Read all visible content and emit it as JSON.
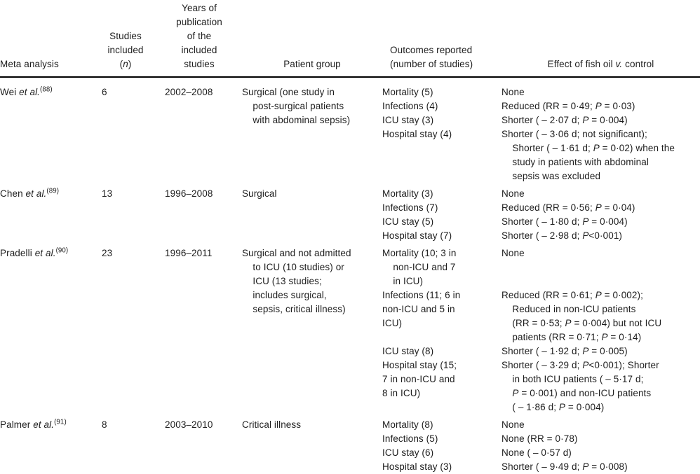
{
  "page": {
    "background_color": "#ffffff",
    "text_color": "#1d1d1d",
    "header_rule_color": "#000000"
  },
  "table": {
    "columns": [
      {
        "key": "meta_analysis",
        "label": "Meta analysis"
      },
      {
        "key": "studies_included",
        "label": "Studies\nincluded\n(*n*)"
      },
      {
        "key": "years",
        "label": "Years of\npublication\nof the\nincluded\nstudies"
      },
      {
        "key": "patient_group",
        "label": "Patient group"
      },
      {
        "key": "outcomes",
        "label": "Outcomes reported\n(number of studies)"
      },
      {
        "key": "effect",
        "label": "Effect of fish oil *v.* control"
      }
    ],
    "rows": [
      {
        "meta_analysis": "Wei *et al.*^(88)^",
        "studies_included": "6",
        "years": "2002–2008",
        "patient_group": "Surgical (one study in\n    post-surgical patients\n    with abdominal sepsis)",
        "outcomes": "Mortality (5)\nInfections (4)\nICU stay (3)\nHospital stay (4)",
        "effect": "None\nReduced (RR = 0·49; *P* = 0·03)\nShorter ( – 2·07 d; *P* = 0·004)\nShorter ( – 3·06 d; not significant);\n    Shorter ( – 1·61 d; *P* = 0·02) when the\n    study in patients with abdominal\n    sepsis was excluded"
      },
      {
        "meta_analysis": "Chen *et al.*^(89)^",
        "studies_included": "13",
        "years": "1996–2008",
        "patient_group": "Surgical",
        "outcomes": "Mortality (3)\nInfections (7)\nICU stay (5)\nHospital stay (7)",
        "effect": "None\nReduced (RR = 0·56; *P* = 0·04)\nShorter ( – 1·80 d; *P* = 0·004)\nShorter ( – 2·98 d; *P*<0·001)"
      },
      {
        "meta_analysis": "Pradelli *et al.*^(90)^",
        "studies_included": "23",
        "years": "1996–2011",
        "patient_group": "Surgical and not admitted\n    to ICU (10 studies) or\n    ICU (13 studies;\n    includes surgical,\n    sepsis, critical illness)",
        "outcomes": "Mortality (10; 3 in\n    non-ICU and 7\n    in ICU)\nInfections (11; 6 in\nnon-ICU and 5 in\nICU)\n\nICU stay (8)\nHospital stay (15;\n7 in non-ICU and\n8 in ICU)",
        "effect": "None\n\n\nReduced (RR = 0·61; *P* = 0·002);\n    Reduced in non-ICU patients\n    (RR = 0·53; *P* = 0·004) but not ICU\n    patients (RR = 0·71; *P* = 0·14)\nShorter ( – 1·92 d; *P* = 0·005)\nShorter ( – 3·29 d; *P*<0·001); Shorter\n    in both ICU patients ( – 5·17 d;\n    *P* = 0·001) and non-ICU patients\n    ( – 1·86 d; *P* = 0·004)"
      },
      {
        "meta_analysis": "Palmer *et al.*^(91)^",
        "studies_included": "8",
        "years": "2003–2010",
        "patient_group": "Critical illness",
        "outcomes": "Mortality (8)\nInfections (5)\nICU stay (6)\nHospital stay (3)",
        "effect": "None\nNone (RR = 0·78)\nNone ( – 0·57 d)\nShorter ( – 9·49 d; *P* = 0·008)"
      }
    ]
  }
}
